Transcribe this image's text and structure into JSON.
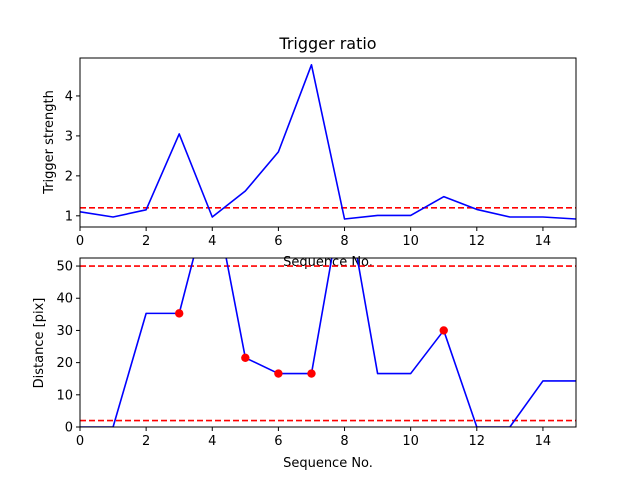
{
  "chart_data": [
    {
      "type": "line",
      "title": "Trigger ratio",
      "xlabel": "Sequence No.",
      "ylabel": "Trigger strength",
      "xlim": [
        0,
        15
      ],
      "ylim": [
        0.72,
        4.95
      ],
      "xticks": [
        0,
        2,
        4,
        6,
        8,
        10,
        12,
        14
      ],
      "yticks": [
        1,
        2,
        3,
        4
      ],
      "grid": false,
      "series": [
        {
          "color": "#0000ff",
          "x": [
            0,
            1,
            2,
            3,
            4,
            5,
            6,
            7,
            8,
            9,
            10,
            11,
            12,
            13,
            14,
            15
          ],
          "y": [
            1.1,
            0.97,
            1.15,
            3.05,
            0.97,
            1.62,
            2.6,
            4.78,
            0.92,
            1.01,
            1.01,
            1.48,
            1.16,
            0.97,
            0.97,
            0.92
          ]
        }
      ],
      "hlines": [
        {
          "y": 1.2,
          "color": "#ff0000",
          "style": "dashed"
        }
      ]
    },
    {
      "type": "line",
      "title": "",
      "xlabel": "Sequence No.",
      "ylabel": "Distance [pix]",
      "xlim": [
        0,
        15
      ],
      "ylim": [
        0,
        52.5
      ],
      "xticks": [
        0,
        2,
        4,
        6,
        8,
        10,
        12,
        14
      ],
      "yticks": [
        0,
        10,
        20,
        30,
        40,
        50
      ],
      "grid": false,
      "series": [
        {
          "color": "#0000ff",
          "x": [
            0,
            1,
            2,
            3,
            4,
            5,
            6,
            7,
            8,
            9,
            10,
            11,
            12,
            13,
            14,
            15
          ],
          "y": [
            0,
            0,
            35.3,
            35.3,
            75,
            21.5,
            16.6,
            16.6,
            75,
            16.6,
            16.6,
            30,
            0,
            0,
            14.3,
            14.3
          ]
        }
      ],
      "markers": {
        "color": "#ff0000",
        "x": [
          3,
          5,
          6,
          7,
          11
        ],
        "y": [
          35.3,
          21.5,
          16.6,
          16.6,
          30
        ]
      },
      "hlines": [
        {
          "y": 50,
          "color": "#ff0000",
          "style": "dashed"
        },
        {
          "y": 2,
          "color": "#ff0000",
          "style": "dashed"
        }
      ]
    }
  ]
}
